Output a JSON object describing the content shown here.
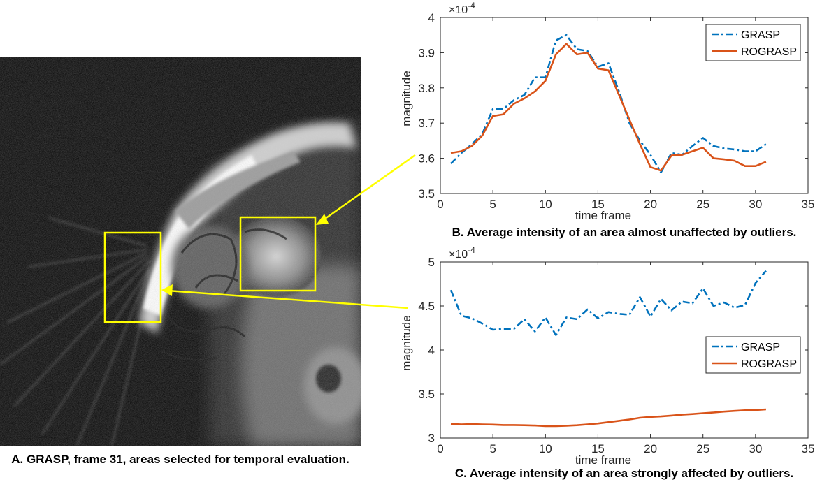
{
  "captions": {
    "a": "A. GRASP, frame 31, areas selected for temporal evaluation.",
    "b": "B. Average intensity of an area almost unaffected by outliers.",
    "c": "C. Average intensity of an area strongly affected by outliers."
  },
  "colors": {
    "grasp": "#0072BD",
    "rograsp": "#D95319",
    "highlight": "#FFFF00"
  },
  "chart_data": [
    {
      "type": "line",
      "id": "B",
      "title": "",
      "xlabel": "time frame",
      "ylabel": "magnitude",
      "exponent": "×10",
      "exponent_power": "-4",
      "xlim": [
        0,
        35
      ],
      "ylim": [
        3.5,
        4.0
      ],
      "xticks": [
        0,
        5,
        10,
        15,
        20,
        25,
        30,
        35
      ],
      "yticks": [
        3.5,
        3.6,
        3.7,
        3.8,
        3.9,
        4.0
      ],
      "xtick_labels": [
        "0",
        "5",
        "10",
        "15",
        "20",
        "25",
        "30",
        "35"
      ],
      "ytick_labels": [
        "3.5",
        "3.6",
        "3.7",
        "3.8",
        "3.9",
        "4"
      ],
      "legend_position": "top-right",
      "x": [
        1,
        2,
        3,
        4,
        5,
        6,
        7,
        8,
        9,
        10,
        11,
        12,
        13,
        14,
        15,
        16,
        17,
        18,
        19,
        20,
        21,
        22,
        23,
        24,
        25,
        26,
        27,
        28,
        29,
        30,
        31
      ],
      "series": [
        {
          "name": "GRASP",
          "style": "dashdot",
          "values": [
            3.585,
            3.615,
            3.64,
            3.67,
            3.74,
            3.74,
            3.765,
            3.78,
            3.83,
            3.83,
            3.935,
            3.95,
            3.91,
            3.905,
            3.86,
            3.87,
            3.79,
            3.7,
            3.65,
            3.61,
            3.56,
            3.615,
            3.61,
            3.635,
            3.658,
            3.635,
            3.628,
            3.625,
            3.62,
            3.62,
            3.64
          ]
        },
        {
          "name": "ROGRASP",
          "style": "solid",
          "values": [
            3.615,
            3.62,
            3.635,
            3.665,
            3.72,
            3.725,
            3.755,
            3.77,
            3.79,
            3.82,
            3.895,
            3.925,
            3.895,
            3.9,
            3.855,
            3.85,
            3.78,
            3.71,
            3.64,
            3.575,
            3.565,
            3.608,
            3.61,
            3.62,
            3.63,
            3.6,
            3.597,
            3.593,
            3.578,
            3.578,
            3.59
          ]
        }
      ]
    },
    {
      "type": "line",
      "id": "C",
      "title": "",
      "xlabel": "time frame",
      "ylabel": "magnitude",
      "exponent": "×10",
      "exponent_power": "-4",
      "xlim": [
        0,
        35
      ],
      "ylim": [
        3.0,
        5.0
      ],
      "xticks": [
        0,
        5,
        10,
        15,
        20,
        25,
        30,
        35
      ],
      "yticks": [
        3.0,
        3.5,
        4.0,
        4.5,
        5.0
      ],
      "xtick_labels": [
        "0",
        "5",
        "10",
        "15",
        "20",
        "25",
        "30",
        "35"
      ],
      "ytick_labels": [
        "3",
        "3.5",
        "4",
        "4.5",
        "5"
      ],
      "legend_position": "right",
      "x": [
        1,
        2,
        3,
        4,
        5,
        6,
        7,
        8,
        9,
        10,
        11,
        12,
        13,
        14,
        15,
        16,
        17,
        18,
        19,
        20,
        21,
        22,
        23,
        24,
        25,
        26,
        27,
        28,
        29,
        30,
        31
      ],
      "series": [
        {
          "name": "GRASP",
          "style": "dashdot",
          "values": [
            4.68,
            4.39,
            4.36,
            4.3,
            4.23,
            4.24,
            4.24,
            4.35,
            4.21,
            4.37,
            4.17,
            4.37,
            4.35,
            4.46,
            4.36,
            4.43,
            4.41,
            4.4,
            4.6,
            4.38,
            4.58,
            4.45,
            4.55,
            4.53,
            4.7,
            4.5,
            4.54,
            4.48,
            4.51,
            4.76,
            4.9
          ]
        },
        {
          "name": "ROGRASP",
          "style": "solid",
          "values": [
            3.16,
            3.155,
            3.158,
            3.155,
            3.152,
            3.148,
            3.148,
            3.145,
            3.142,
            3.135,
            3.135,
            3.14,
            3.145,
            3.155,
            3.165,
            3.18,
            3.195,
            3.21,
            3.23,
            3.24,
            3.245,
            3.255,
            3.265,
            3.272,
            3.282,
            3.29,
            3.3,
            3.308,
            3.315,
            3.318,
            3.325
          ]
        }
      ]
    }
  ]
}
